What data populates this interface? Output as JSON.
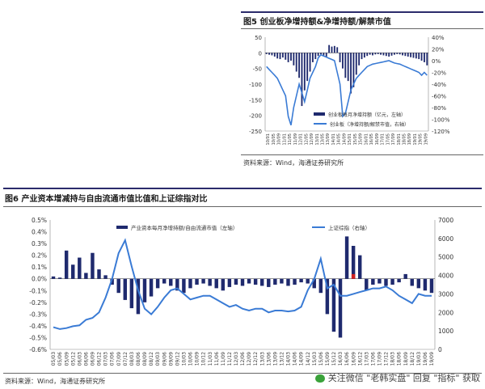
{
  "fig5": {
    "title": "图5   创业板净增持额&净增持额/解禁市值",
    "source": "资料来源：Wind，海通证券研究所",
    "legend": [
      "创业板每月净增持额（亿元，左轴）",
      "创业板（净增持额/解禁市值，右轴）"
    ]
  },
  "fig6": {
    "title": "图6   产业资本增减持与自由流通市值比值和上证综指对比",
    "source": "资料来源：Wind，海通证券研究所",
    "legend": [
      "产业资本每月净增持额/自由流通市值（左轴）",
      "上证综指（右轴）"
    ]
  },
  "watermark": "关注微信 \"老韩实盘\" 回复 \"指标\" 获取",
  "colors": {
    "bar": "#1f2a6e",
    "line": "#3a7bd5",
    "red": "#d02020"
  },
  "chart_data": [
    {
      "type": "bar",
      "title": "创业板净增持额&净增持额/解禁市值",
      "y_left_ticks": [
        50,
        0,
        -50,
        -100,
        -150,
        -200,
        -250
      ],
      "y_right_ticks": [
        "40%",
        "20%",
        "0%",
        "-20%",
        "-40%",
        "-60%",
        "-80%",
        "-100%",
        "-120%"
      ],
      "ylim_left": [
        -250,
        50
      ],
      "ylim_right": [
        -120,
        40
      ],
      "x_ticks": [
        "10/01",
        "10/05",
        "10/09",
        "11/01",
        "11/05",
        "11/09",
        "12/01",
        "12/05",
        "12/09",
        "13/01",
        "13/05",
        "13/09",
        "14/01",
        "14/05",
        "14/09",
        "15/01",
        "15/05",
        "15/09",
        "16/01",
        "16/05",
        "16/09",
        "17/01",
        "17/05",
        "17/09",
        "18/01",
        "18/05",
        "18/09",
        "19/01",
        "19/05",
        "19/09"
      ],
      "series": [
        {
          "name": "创业板每月净增持额（亿元，左轴）",
          "axis": "left",
          "type": "bar",
          "values": [
            -4,
            -6,
            -8,
            -12,
            -18,
            -20,
            -15,
            -22,
            -30,
            -25,
            -40,
            -60,
            -80,
            -170,
            -120,
            -90,
            -60,
            -30,
            -20,
            -10,
            -5,
            -8,
            -12,
            25,
            20,
            22,
            18,
            -30,
            -50,
            -80,
            -90,
            -130,
            -110,
            -70,
            -40,
            -20,
            -15,
            -10,
            -6,
            -8,
            -5,
            -4,
            -6,
            -8,
            -10,
            -12,
            -9,
            -6,
            -4,
            -5,
            -8,
            -10,
            -12,
            -14,
            -16,
            -18,
            -20,
            -25,
            -30,
            -40
          ]
        },
        {
          "name": "创业板（净增持额/解禁市值，右轴）",
          "axis": "right",
          "type": "line",
          "values": [
            -10,
            -15,
            -20,
            -25,
            -30,
            -40,
            -50,
            -60,
            -95,
            -110,
            -80,
            -60,
            -40,
            -55,
            -70,
            -50,
            -30,
            -20,
            -10,
            5,
            10,
            8,
            6,
            4,
            2,
            0,
            -20,
            -40,
            -95,
            -90,
            -70,
            -50,
            -40,
            -30,
            -25,
            -20,
            -15,
            -10,
            -8,
            -6,
            -5,
            -4,
            -3,
            -2,
            -1,
            0,
            -2,
            -4,
            -5,
            -6,
            -8,
            -10,
            -12,
            -14,
            -16,
            -18,
            -20,
            -25,
            -20,
            -25
          ]
        }
      ]
    },
    {
      "type": "bar",
      "title": "产业资本增减持与自由流通市值比值和上证综指对比",
      "y_left_ticks": [
        "0.5%",
        "0.4%",
        "0.3%",
        "0.2%",
        "0.1%",
        "0.0%",
        "-0.1%",
        "-0.2%",
        "-0.3%",
        "-0.4%",
        "-0.5%",
        "-0.6%"
      ],
      "y_right_ticks": [
        7000,
        6000,
        5000,
        4000,
        3000,
        2000,
        1000,
        0
      ],
      "ylim_left": [
        -0.6,
        0.5
      ],
      "ylim_right": [
        0,
        7000
      ],
      "x_ticks": [
        "05/03",
        "05/06",
        "05/09",
        "05/12",
        "06/03",
        "06/06",
        "06/09",
        "06/12",
        "07/03",
        "07/06",
        "07/09",
        "07/12",
        "08/03",
        "08/06",
        "08/09",
        "08/12",
        "09/03",
        "09/06",
        "09/09",
        "09/12",
        "10/03",
        "10/06",
        "10/09",
        "10/12",
        "11/03",
        "11/06",
        "11/09",
        "11/12",
        "12/03",
        "12/06",
        "12/09",
        "12/12",
        "13/03",
        "13/06",
        "13/09",
        "13/12",
        "14/03",
        "14/06",
        "14/09",
        "14/12",
        "15/03",
        "15/06",
        "15/09",
        "15/12",
        "16/03",
        "16/06",
        "16/09",
        "16/12",
        "17/03",
        "17/06",
        "17/09",
        "17/12",
        "18/03",
        "18/06",
        "18/09",
        "18/12",
        "19/03",
        "19/06",
        "19/09"
      ],
      "series": [
        {
          "name": "产业资本每月净增持额/自由流通市值（左轴）",
          "axis": "left",
          "type": "bar",
          "values": [
            0.02,
            0.01,
            0.24,
            0.12,
            0.18,
            0.05,
            0.22,
            0.08,
            0.03,
            -0.05,
            -0.12,
            -0.18,
            -0.25,
            -0.3,
            -0.2,
            -0.15,
            -0.08,
            -0.04,
            -0.06,
            -0.1,
            -0.12,
            -0.08,
            -0.05,
            -0.04,
            -0.06,
            -0.08,
            -0.1,
            -0.07,
            -0.05,
            -0.06,
            -0.04,
            -0.05,
            -0.06,
            -0.07,
            -0.05,
            -0.04,
            -0.06,
            -0.05,
            -0.03,
            -0.04,
            -0.08,
            -0.12,
            -0.3,
            -0.45,
            -0.5,
            0.36,
            0.28,
            0.2,
            -0.1,
            -0.05,
            -0.04,
            -0.06,
            -0.05,
            -0.03,
            0.04,
            -0.06,
            -0.08,
            -0.1,
            -0.12
          ]
        },
        {
          "name": "上证综指（右轴）",
          "axis": "right",
          "type": "line",
          "values": [
            1200,
            1100,
            1150,
            1250,
            1300,
            1600,
            1700,
            2000,
            2800,
            3800,
            5200,
            5900,
            4500,
            3200,
            2200,
            1900,
            2300,
            2800,
            3200,
            3300,
            3000,
            2700,
            2800,
            2900,
            2900,
            2700,
            2500,
            2300,
            2400,
            2200,
            2100,
            2200,
            2200,
            2000,
            2100,
            2100,
            2050,
            2100,
            2300,
            3200,
            3800,
            4900,
            3300,
            3500,
            2900,
            2900,
            3000,
            3100,
            3200,
            3300,
            3300,
            3400,
            3200,
            2900,
            2700,
            2500,
            3000,
            2900,
            2900
          ]
        },
        {
          "name": "",
          "axis": "left",
          "type": "highlight",
          "values": [
            0.04
          ]
        }
      ]
    }
  ]
}
